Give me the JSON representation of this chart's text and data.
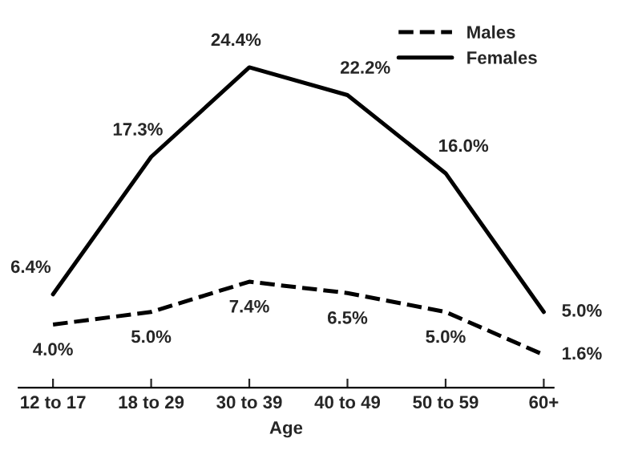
{
  "chart_data": {
    "type": "line",
    "xlabel": "Age",
    "categories": [
      "12 to 17",
      "18 to 29",
      "30 to 39",
      "40 to 49",
      "50 to 59",
      "60+"
    ],
    "series": [
      {
        "name": "Males",
        "color": "#000000",
        "line_style": "dashed",
        "values": [
          4.0,
          5.0,
          7.4,
          6.5,
          5.0,
          1.6
        ],
        "value_labels": [
          "4.0%",
          "5.0%",
          "7.4%",
          "6.5%",
          "5.0%",
          "1.6%"
        ]
      },
      {
        "name": "Females",
        "color": "#000000",
        "line_style": "solid",
        "values": [
          6.4,
          17.3,
          24.4,
          22.2,
          16.0,
          5.0
        ],
        "value_labels": [
          "6.4%",
          "17.3%",
          "24.4%",
          "22.2%",
          "16.0%",
          "5.0%"
        ]
      }
    ],
    "legend": "top right",
    "grid": false,
    "marker": "none"
  }
}
